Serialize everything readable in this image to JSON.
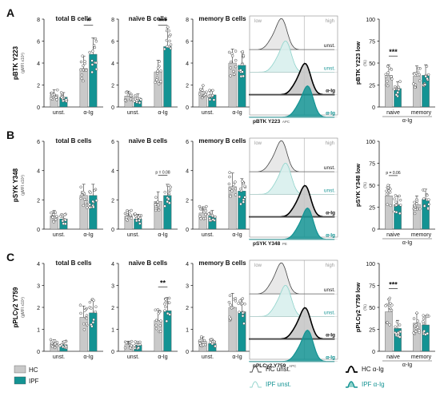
{
  "colors": {
    "hc": "#c9c9c9",
    "ipf": "#139393",
    "ipf_light": "#8fd3cb",
    "axis": "#222222",
    "grey_text": "#9a9a9a"
  },
  "legend": {
    "hc": "HC",
    "ipf": "IPF"
  },
  "histogram_legend": {
    "hc_unst": "HC unst.",
    "ipf_unst": "IPF unst.",
    "hc_aig": "HC α-Ig",
    "ipf_aig": "IPF α-Ig"
  },
  "panels": [
    {
      "letter": "A",
      "ylabel_main": "pBTK",
      "ylabel_sub": "Y223",
      "ylabel_unit": "(gMFI x10³)",
      "ymax": 8,
      "yticks": [
        0,
        2,
        4,
        6,
        8
      ],
      "hist_xlabel": "pBTK Y223",
      "hist_unit": "APC",
      "low_label": "low",
      "high_label": "high",
      "pct_ylabel": "pBTK Y223 low",
      "pct_unit": "(%)"
    },
    {
      "letter": "B",
      "ylabel_main": "pSYK",
      "ylabel_sub": "Y348",
      "ylabel_unit": "(gMFI x10³)",
      "ymax": 6,
      "yticks": [
        0,
        2,
        4,
        6
      ],
      "hist_xlabel": "pSYK Y348",
      "hist_unit": "PE",
      "low_label": "low",
      "high_label": "high",
      "pct_ylabel": "pSYK Y348 low",
      "pct_unit": "(%)"
    },
    {
      "letter": "C",
      "ylabel_main": "pPLCγ2",
      "ylabel_sub": "Y759",
      "ylabel_unit": "(gMFI x10³)",
      "ymax": 4,
      "yticks": [
        0,
        1,
        2,
        3,
        4
      ],
      "hist_xlabel": "pPLCγ2 Y759",
      "hist_unit": "APC",
      "low_label": "low",
      "high_label": "high",
      "pct_ylabel": "pPLCγ2 Y759 low",
      "pct_unit": "(%)"
    }
  ],
  "chart_data": [
    {
      "type": "bar",
      "panel": "A",
      "title": "total B cells",
      "groups": [
        "unst.",
        "α-Ig"
      ],
      "series": [
        {
          "name": "HC",
          "values": [
            1.1,
            3.5
          ]
        },
        {
          "name": "IPF",
          "values": [
            0.9,
            4.8
          ]
        }
      ],
      "ylim": [
        0,
        8
      ],
      "significance": [
        {
          "group": "α-Ig",
          "label": "*"
        }
      ]
    },
    {
      "type": "bar",
      "panel": "A",
      "title": "naïve B cells",
      "groups": [
        "unst.",
        "α-Ig"
      ],
      "series": [
        {
          "name": "HC",
          "values": [
            1.0,
            3.2
          ]
        },
        {
          "name": "IPF",
          "values": [
            0.8,
            5.5
          ]
        }
      ],
      "ylim": [
        0,
        8
      ],
      "significance": [
        {
          "group": "α-Ig",
          "label": "***"
        }
      ]
    },
    {
      "type": "bar",
      "panel": "A",
      "title": "memory B cells",
      "groups": [
        "unst.",
        "α-Ig"
      ],
      "series": [
        {
          "name": "HC",
          "values": [
            1.4,
            4.0
          ]
        },
        {
          "name": "IPF",
          "values": [
            1.1,
            3.8
          ]
        }
      ],
      "ylim": [
        0,
        8
      ],
      "significance": []
    },
    {
      "type": "bar",
      "panel": "B",
      "title": "total B cells",
      "groups": [
        "unst.",
        "α-Ig"
      ],
      "series": [
        {
          "name": "HC",
          "values": [
            0.9,
            2.3
          ]
        },
        {
          "name": "IPF",
          "values": [
            0.7,
            2.3
          ]
        }
      ],
      "ylim": [
        0,
        6
      ],
      "significance": []
    },
    {
      "type": "bar",
      "panel": "B",
      "title": "naïve B cells",
      "groups": [
        "unst.",
        "α-Ig"
      ],
      "series": [
        {
          "name": "HC",
          "values": [
            0.9,
            1.9
          ]
        },
        {
          "name": "IPF",
          "values": [
            0.7,
            2.3
          ]
        }
      ],
      "ylim": [
        0,
        6
      ],
      "significance": [
        {
          "group": "α-Ig",
          "label": "p = 0.08"
        }
      ]
    },
    {
      "type": "bar",
      "panel": "B",
      "title": "memory B cells",
      "groups": [
        "unst.",
        "α-Ig"
      ],
      "series": [
        {
          "name": "HC",
          "values": [
            1.1,
            2.9
          ]
        },
        {
          "name": "IPF",
          "values": [
            0.9,
            2.6
          ]
        }
      ],
      "ylim": [
        0,
        6
      ],
      "significance": []
    },
    {
      "type": "bar",
      "panel": "C",
      "title": "total B cells",
      "groups": [
        "unst.",
        "α-Ig"
      ],
      "series": [
        {
          "name": "HC",
          "values": [
            0.35,
            1.55
          ]
        },
        {
          "name": "IPF",
          "values": [
            0.3,
            1.75
          ]
        }
      ],
      "ylim": [
        0,
        4
      ],
      "significance": []
    },
    {
      "type": "bar",
      "panel": "C",
      "title": "naïve B cells",
      "groups": [
        "unst.",
        "α-Ig"
      ],
      "series": [
        {
          "name": "HC",
          "values": [
            0.3,
            1.4
          ]
        },
        {
          "name": "IPF",
          "values": [
            0.28,
            1.85
          ]
        }
      ],
      "ylim": [
        0,
        4
      ],
      "significance": [
        {
          "group": "α-Ig",
          "label": "**"
        }
      ]
    },
    {
      "type": "bar",
      "panel": "C",
      "title": "memory B cells",
      "groups": [
        "unst.",
        "α-Ig"
      ],
      "series": [
        {
          "name": "HC",
          "values": [
            0.45,
            2.0
          ]
        },
        {
          "name": "IPF",
          "values": [
            0.35,
            1.8
          ]
        }
      ],
      "ylim": [
        0,
        4
      ],
      "significance": []
    },
    {
      "type": "bar",
      "panel": "A",
      "title": "",
      "ylabel": "pBTK Y223 low (%)",
      "groups": [
        "naive",
        "memory"
      ],
      "group_label": "α-Ig",
      "series": [
        {
          "name": "HC",
          "values": [
            36,
            35
          ]
        },
        {
          "name": "IPF",
          "values": [
            21,
            36
          ]
        }
      ],
      "ylim": [
        0,
        100
      ],
      "yticks": [
        0,
        25,
        50,
        75,
        100
      ],
      "significance": [
        {
          "group": "naive",
          "label": "***"
        }
      ]
    },
    {
      "type": "bar",
      "panel": "B",
      "title": "",
      "ylabel": "pSYK Y348 low (%)",
      "groups": [
        "naive",
        "memory"
      ],
      "group_label": "α-Ig",
      "series": [
        {
          "name": "HC",
          "values": [
            38,
            28
          ]
        },
        {
          "name": "IPF",
          "values": [
            28,
            34
          ]
        }
      ],
      "ylim": [
        0,
        100
      ],
      "yticks": [
        0,
        25,
        50,
        75,
        100
      ],
      "significance": [
        {
          "group": "naive",
          "label": "p = 0.06"
        }
      ]
    },
    {
      "type": "bar",
      "panel": "C",
      "title": "",
      "ylabel": "pPLCγ2 Y759 low (%)",
      "groups": [
        "naive",
        "memory"
      ],
      "group_label": "α-Ig",
      "series": [
        {
          "name": "HC",
          "values": [
            45,
            32
          ]
        },
        {
          "name": "IPF",
          "values": [
            26,
            30
          ]
        }
      ],
      "ylim": [
        0,
        100
      ],
      "yticks": [
        0,
        25,
        50,
        75,
        100
      ],
      "significance": [
        {
          "group": "naive",
          "label": "***"
        }
      ]
    }
  ],
  "histograms": [
    {
      "panel": "A",
      "traces": [
        "unst.",
        "unst.",
        "α-Ig",
        "α-Ig"
      ]
    },
    {
      "panel": "B",
      "traces": [
        "unst.",
        "unst.",
        "α-Ig",
        "α-Ig"
      ]
    },
    {
      "panel": "C",
      "traces": [
        "unst.",
        "unst.",
        "α-Ig",
        "α-Ig"
      ]
    }
  ]
}
